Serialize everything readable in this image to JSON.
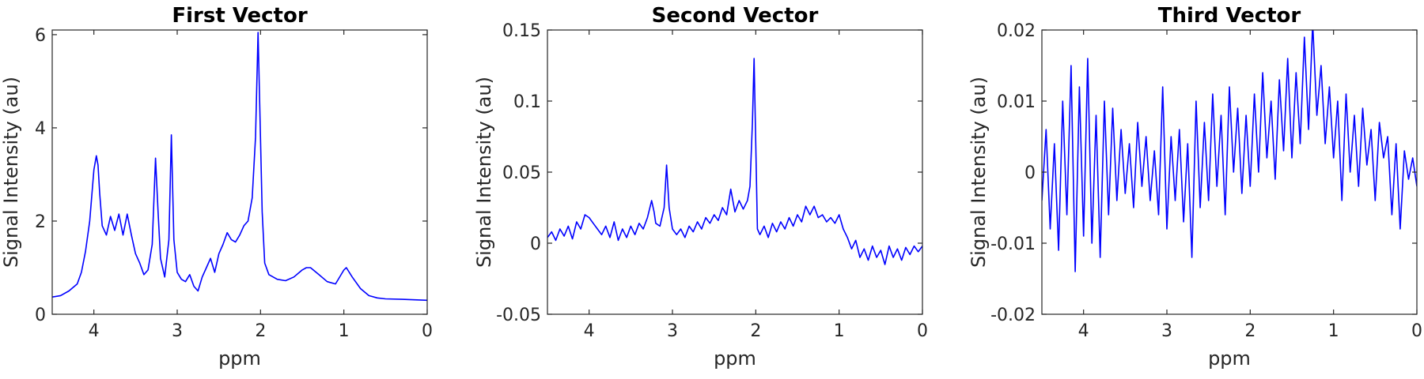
{
  "figure": {
    "background": "#ffffff",
    "line_color": "#0000ff"
  },
  "chart_data": [
    {
      "type": "line",
      "title": "First Vector",
      "xlabel": "ppm",
      "ylabel": "Signal Intensity (au)",
      "xlim": [
        4.5,
        0
      ],
      "ylim": [
        0,
        6.1
      ],
      "x_reversed": true,
      "grid": false,
      "legend": "none",
      "xticks": [
        4,
        3,
        2,
        1,
        0
      ],
      "yticks": [
        0,
        2,
        4,
        6
      ],
      "ytick_labels": [
        "0",
        "2",
        "4",
        "6"
      ],
      "series": [
        {
          "color": "#0000ff",
          "x": [
            4.5,
            4.4,
            4.3,
            4.2,
            4.15,
            4.1,
            4.05,
            4.0,
            3.97,
            3.95,
            3.93,
            3.9,
            3.85,
            3.8,
            3.75,
            3.7,
            3.65,
            3.6,
            3.55,
            3.5,
            3.45,
            3.4,
            3.35,
            3.3,
            3.26,
            3.23,
            3.2,
            3.15,
            3.1,
            3.07,
            3.04,
            3.0,
            2.95,
            2.9,
            2.85,
            2.8,
            2.75,
            2.7,
            2.65,
            2.6,
            2.55,
            2.5,
            2.45,
            2.4,
            2.35,
            2.3,
            2.25,
            2.2,
            2.15,
            2.1,
            2.06,
            2.03,
            2.01,
            1.98,
            1.95,
            1.9,
            1.8,
            1.7,
            1.6,
            1.5,
            1.45,
            1.4,
            1.3,
            1.2,
            1.1,
            1.0,
            0.97,
            0.9,
            0.8,
            0.7,
            0.6,
            0.5,
            0.3,
            0.0
          ],
          "y": [
            0.37,
            0.4,
            0.5,
            0.65,
            0.9,
            1.35,
            2.0,
            3.1,
            3.4,
            3.2,
            2.6,
            1.9,
            1.7,
            2.1,
            1.8,
            2.15,
            1.7,
            2.15,
            1.7,
            1.3,
            1.1,
            0.85,
            0.95,
            1.5,
            3.35,
            2.2,
            1.2,
            0.8,
            1.6,
            3.85,
            1.6,
            0.9,
            0.75,
            0.7,
            0.85,
            0.6,
            0.5,
            0.8,
            1.0,
            1.2,
            0.9,
            1.3,
            1.5,
            1.75,
            1.6,
            1.55,
            1.7,
            1.9,
            2.0,
            2.5,
            3.8,
            6.05,
            4.5,
            2.2,
            1.1,
            0.85,
            0.75,
            0.72,
            0.8,
            0.95,
            1.0,
            1.0,
            0.85,
            0.7,
            0.65,
            0.95,
            1.0,
            0.8,
            0.55,
            0.4,
            0.35,
            0.33,
            0.32,
            0.3
          ]
        }
      ]
    },
    {
      "type": "line",
      "title": "Second Vector",
      "xlabel": "ppm",
      "ylabel": "Signal Intensity (au)",
      "xlim": [
        4.5,
        0
      ],
      "ylim": [
        -0.05,
        0.15
      ],
      "x_reversed": true,
      "grid": false,
      "legend": "none",
      "xticks": [
        4,
        3,
        2,
        1,
        0
      ],
      "yticks": [
        -0.05,
        0,
        0.05,
        0.1,
        0.15
      ],
      "ytick_labels": [
        "-0.05",
        "0",
        "0.05",
        "0.1",
        "0.15"
      ],
      "series": [
        {
          "color": "#0000ff",
          "x": [
            4.5,
            4.45,
            4.4,
            4.35,
            4.3,
            4.25,
            4.2,
            4.15,
            4.1,
            4.05,
            4.0,
            3.95,
            3.9,
            3.85,
            3.8,
            3.75,
            3.7,
            3.65,
            3.6,
            3.55,
            3.5,
            3.45,
            3.4,
            3.35,
            3.3,
            3.25,
            3.22,
            3.2,
            3.15,
            3.1,
            3.07,
            3.04,
            3.0,
            2.95,
            2.9,
            2.85,
            2.8,
            2.75,
            2.7,
            2.65,
            2.6,
            2.55,
            2.5,
            2.45,
            2.4,
            2.35,
            2.3,
            2.25,
            2.2,
            2.15,
            2.1,
            2.07,
            2.04,
            2.02,
            2.0,
            1.98,
            1.95,
            1.9,
            1.85,
            1.8,
            1.75,
            1.7,
            1.65,
            1.6,
            1.55,
            1.5,
            1.45,
            1.4,
            1.35,
            1.3,
            1.25,
            1.2,
            1.15,
            1.1,
            1.05,
            1.0,
            0.95,
            0.9,
            0.85,
            0.8,
            0.75,
            0.7,
            0.65,
            0.6,
            0.55,
            0.5,
            0.45,
            0.4,
            0.35,
            0.3,
            0.25,
            0.2,
            0.15,
            0.1,
            0.05,
            0.0
          ],
          "y": [
            0.004,
            0.008,
            0.002,
            0.01,
            0.005,
            0.012,
            0.003,
            0.015,
            0.01,
            0.02,
            0.018,
            0.014,
            0.01,
            0.006,
            0.012,
            0.004,
            0.015,
            0.002,
            0.01,
            0.004,
            0.012,
            0.006,
            0.014,
            0.01,
            0.018,
            0.03,
            0.022,
            0.014,
            0.012,
            0.025,
            0.055,
            0.025,
            0.01,
            0.006,
            0.01,
            0.004,
            0.012,
            0.008,
            0.015,
            0.01,
            0.018,
            0.014,
            0.02,
            0.016,
            0.025,
            0.02,
            0.038,
            0.022,
            0.03,
            0.024,
            0.03,
            0.04,
            0.085,
            0.13,
            0.07,
            0.01,
            0.006,
            0.012,
            0.004,
            0.014,
            0.008,
            0.015,
            0.01,
            0.018,
            0.012,
            0.02,
            0.015,
            0.026,
            0.02,
            0.026,
            0.018,
            0.02,
            0.015,
            0.018,
            0.014,
            0.02,
            0.01,
            0.004,
            -0.004,
            0.002,
            -0.01,
            -0.004,
            -0.012,
            -0.002,
            -0.01,
            -0.005,
            -0.015,
            -0.002,
            -0.01,
            -0.004,
            -0.012,
            -0.003,
            -0.008,
            -0.002,
            -0.006,
            -0.002
          ]
        }
      ]
    },
    {
      "type": "line",
      "title": "Third Vector",
      "xlabel": "ppm",
      "ylabel": "Signal Intensity (au)",
      "xlim": [
        4.5,
        0
      ],
      "ylim": [
        -0.02,
        0.02
      ],
      "x_reversed": true,
      "grid": false,
      "legend": "none",
      "xticks": [
        4,
        3,
        2,
        1,
        0
      ],
      "yticks": [
        -0.02,
        -0.01,
        0,
        0.01,
        0.02
      ],
      "ytick_labels": [
        "-0.02",
        "-0.01",
        "0",
        "0.01",
        "0.02"
      ],
      "series": [
        {
          "color": "#0000ff",
          "x": [
            4.5,
            4.45,
            4.4,
            4.35,
            4.3,
            4.25,
            4.2,
            4.15,
            4.1,
            4.05,
            4.0,
            3.95,
            3.9,
            3.85,
            3.8,
            3.75,
            3.7,
            3.65,
            3.6,
            3.55,
            3.5,
            3.45,
            3.4,
            3.35,
            3.3,
            3.25,
            3.2,
            3.15,
            3.1,
            3.05,
            3.0,
            2.95,
            2.9,
            2.85,
            2.8,
            2.75,
            2.7,
            2.65,
            2.6,
            2.55,
            2.5,
            2.45,
            2.4,
            2.35,
            2.3,
            2.25,
            2.2,
            2.15,
            2.1,
            2.05,
            2.0,
            1.95,
            1.9,
            1.85,
            1.8,
            1.75,
            1.7,
            1.65,
            1.6,
            1.55,
            1.5,
            1.45,
            1.4,
            1.35,
            1.3,
            1.25,
            1.2,
            1.15,
            1.1,
            1.05,
            1.0,
            0.95,
            0.9,
            0.85,
            0.8,
            0.75,
            0.7,
            0.65,
            0.6,
            0.55,
            0.5,
            0.45,
            0.4,
            0.35,
            0.3,
            0.25,
            0.2,
            0.15,
            0.1,
            0.05,
            0.0
          ],
          "y": [
            -0.004,
            0.006,
            -0.008,
            0.004,
            -0.011,
            0.01,
            -0.006,
            0.015,
            -0.014,
            0.012,
            -0.009,
            0.016,
            -0.01,
            0.008,
            -0.012,
            0.01,
            -0.006,
            0.009,
            -0.004,
            0.006,
            -0.003,
            0.004,
            -0.005,
            0.007,
            -0.002,
            0.005,
            -0.004,
            0.003,
            -0.006,
            0.012,
            -0.008,
            0.005,
            -0.004,
            0.006,
            -0.007,
            0.004,
            -0.012,
            0.01,
            -0.005,
            0.007,
            -0.004,
            0.011,
            -0.002,
            0.008,
            -0.006,
            0.012,
            0.0,
            0.009,
            -0.003,
            0.008,
            -0.002,
            0.011,
            0.0,
            0.014,
            0.002,
            0.01,
            -0.001,
            0.013,
            0.003,
            0.016,
            0.002,
            0.014,
            0.004,
            0.019,
            0.006,
            0.021,
            0.008,
            0.015,
            0.004,
            0.012,
            0.002,
            0.01,
            -0.004,
            0.011,
            0.0,
            0.008,
            -0.002,
            0.009,
            0.001,
            0.006,
            -0.004,
            0.007,
            0.002,
            0.005,
            -0.006,
            0.004,
            -0.008,
            0.003,
            -0.001,
            0.002,
            -0.002
          ]
        }
      ]
    }
  ]
}
